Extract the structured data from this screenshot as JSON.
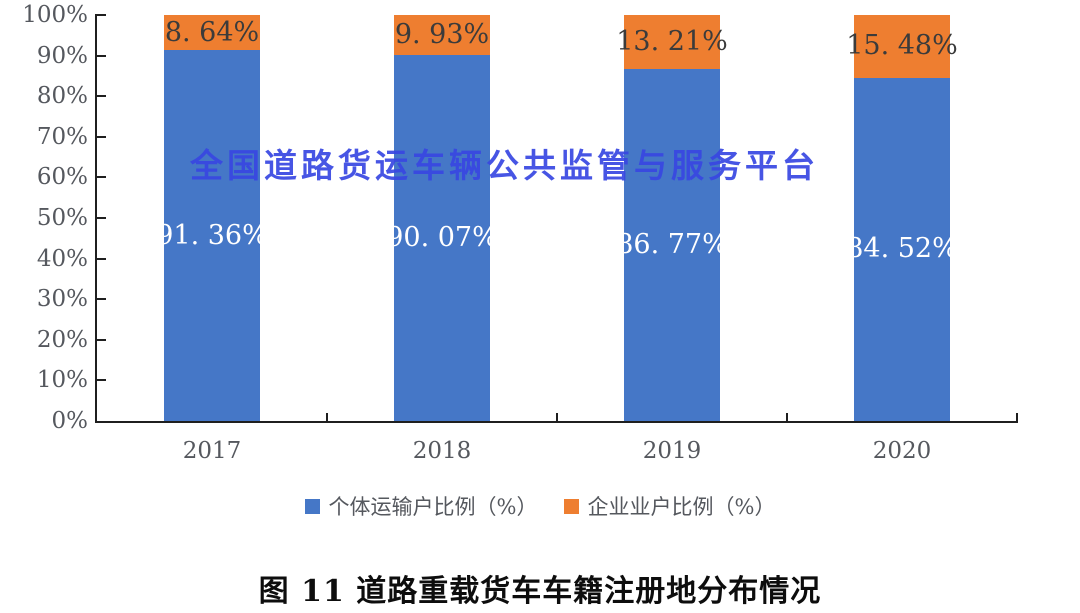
{
  "watermark": {
    "text": "全国道路货运车辆公共监管与服务平台",
    "color": "#3847e2"
  },
  "title": {
    "text": "图 11 道路重载货车车籍注册地分布情况"
  },
  "chart_data": {
    "type": "bar",
    "stacked": true,
    "categories": [
      "2017",
      "2018",
      "2019",
      "2020"
    ],
    "series": [
      {
        "name": "个体运输户比例（%）",
        "color": "#4577c7",
        "values": [
          91.36,
          90.07,
          86.77,
          84.52
        ],
        "labels": [
          "91. 36%",
          "90. 07%",
          "86. 77%",
          "84. 52%"
        ],
        "label_color": "#ffffff"
      },
      {
        "name": "企业业户比例（%）",
        "color": "#ee7e30",
        "values": [
          8.64,
          9.93,
          13.21,
          15.48
        ],
        "labels": [
          "8. 64%",
          "9. 93%",
          "13. 21%",
          "15. 48%"
        ],
        "label_color": "#3b3b3b"
      }
    ],
    "title": "",
    "xlabel": "",
    "ylabel": "",
    "ylim": [
      0,
      100
    ],
    "ytick_labels": [
      "100%",
      "90%",
      "80%",
      "70%",
      "60%",
      "50%",
      "40%",
      "30%",
      "20%",
      "10%",
      "0%"
    ],
    "grid": false,
    "legend_position": "bottom",
    "axis_color": "#1f1f1f",
    "tick_label_color": "#55585e"
  }
}
